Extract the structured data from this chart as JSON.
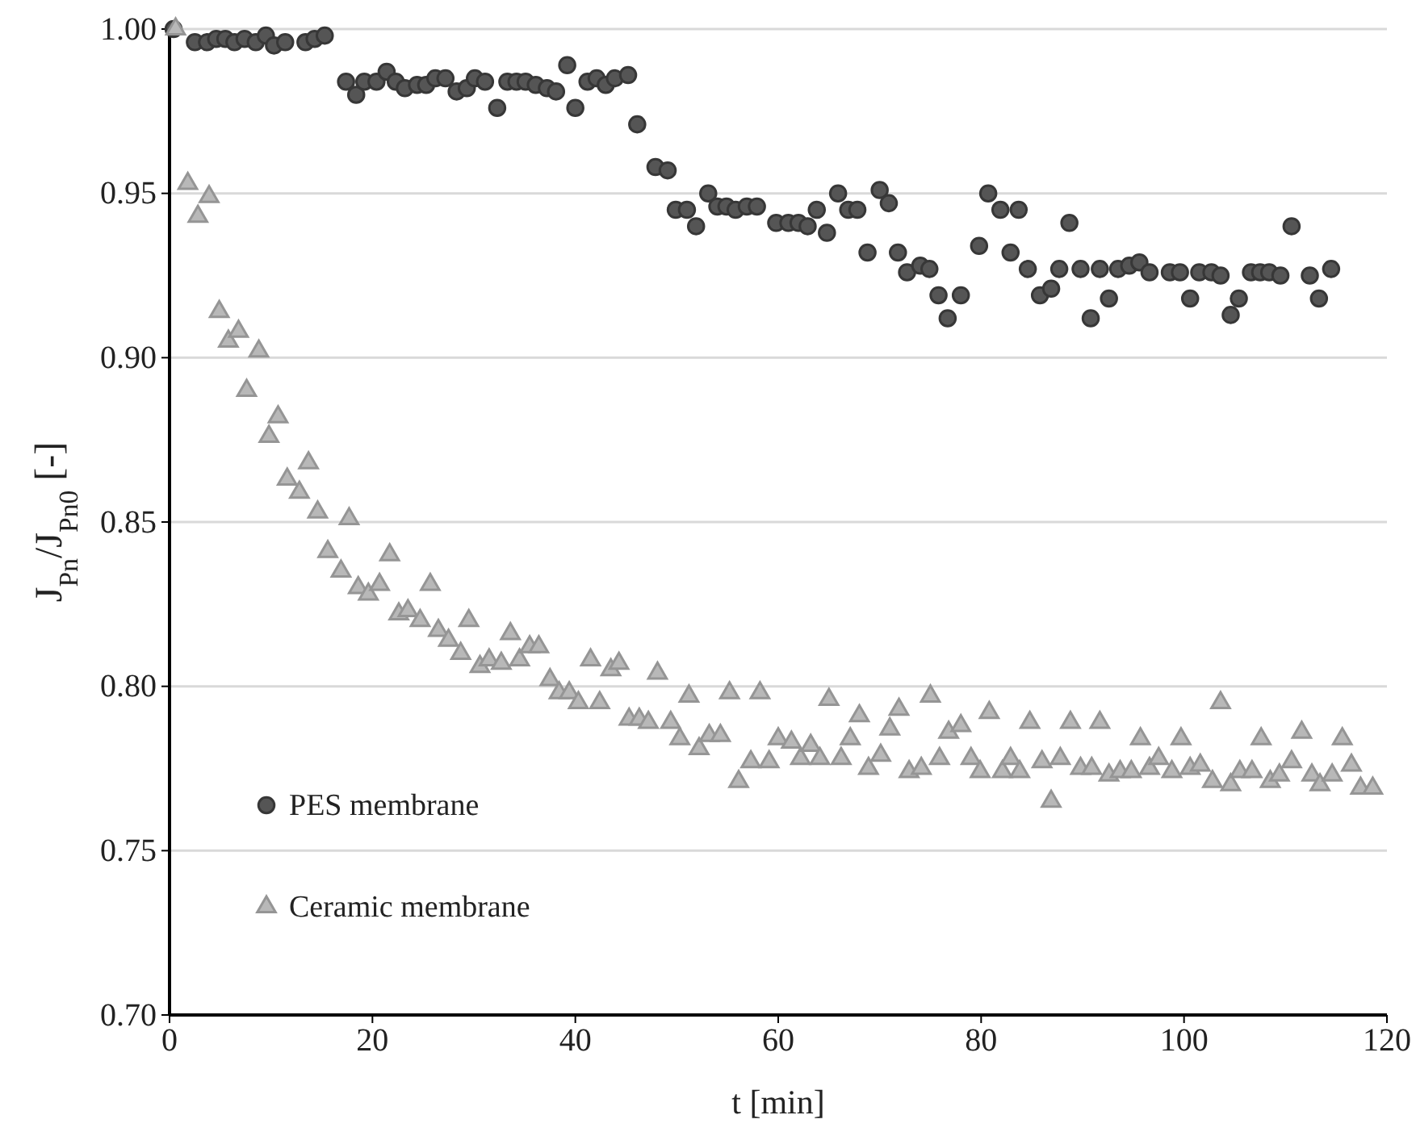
{
  "chart_data": {
    "type": "scatter",
    "xlabel": "t [min]",
    "ylabel": "J$_{Pn}$/J$_{Pn0}$ [-]",
    "xlim": [
      0,
      120
    ],
    "xticks": [
      0,
      20,
      40,
      60,
      80,
      100,
      120
    ],
    "ylim": [
      0.7,
      1.0
    ],
    "yticks": [
      {
        "value": 0.7,
        "label": "0.70"
      },
      {
        "value": 0.75,
        "label": "0.75"
      },
      {
        "value": 0.8,
        "label": "0.80"
      },
      {
        "value": 0.85,
        "label": "0.85"
      },
      {
        "value": 0.9,
        "label": "0.90"
      },
      {
        "value": 0.95,
        "label": "0.95"
      },
      {
        "value": 1.0,
        "label": "1.00"
      }
    ],
    "grid": "y",
    "legend": "bottom left",
    "series": [
      {
        "name": "PES membrane",
        "color": "#555555",
        "marker": "circle",
        "x": [
          0.4,
          2.5,
          3.7,
          4.6,
          5.5,
          6.4,
          7.4,
          8.5,
          9.5,
          10.3,
          11.4,
          13.4,
          14.3,
          15.3,
          17.4,
          18.4,
          19.2,
          20.4,
          21.4,
          22.3,
          23.2,
          24.4,
          25.3,
          26.2,
          27.2,
          28.3,
          29.3,
          30.1,
          31.1,
          32.3,
          33.3,
          34.2,
          35.1,
          36.1,
          37.2,
          38.1,
          39.2,
          40,
          41.2,
          42.1,
          43,
          43.9,
          45.2,
          46.1,
          47.9,
          49.1,
          49.9,
          51,
          51.9,
          53.1,
          54,
          54.9,
          55.8,
          56.9,
          57.9,
          59.8,
          61,
          62,
          62.9,
          63.8,
          64.8,
          65.9,
          66.9,
          67.8,
          68.8,
          70,
          70.9,
          71.8,
          72.7,
          74,
          74.9,
          75.8,
          76.7,
          78,
          79.8,
          80.7,
          81.9,
          82.9,
          83.7,
          84.6,
          85.8,
          86.9,
          87.7,
          88.7,
          89.8,
          90.8,
          91.7,
          92.6,
          93.5,
          94.6,
          95.6,
          96.6,
          98.6,
          99.6,
          100.6,
          101.5,
          102.7,
          103.6,
          104.6,
          105.4,
          106.6,
          107.5,
          108.4,
          109.5,
          110.6,
          112.4,
          113.3,
          114.5
        ],
        "values": [
          1.0,
          0.996,
          0.996,
          0.997,
          0.997,
          0.996,
          0.997,
          0.996,
          0.998,
          0.995,
          0.996,
          0.996,
          0.997,
          0.998,
          0.984,
          0.98,
          0.984,
          0.984,
          0.987,
          0.984,
          0.982,
          0.983,
          0.983,
          0.985,
          0.985,
          0.981,
          0.982,
          0.985,
          0.984,
          0.976,
          0.984,
          0.984,
          0.984,
          0.983,
          0.982,
          0.981,
          0.989,
          0.976,
          0.984,
          0.985,
          0.983,
          0.985,
          0.986,
          0.971,
          0.958,
          0.957,
          0.945,
          0.945,
          0.94,
          0.95,
          0.946,
          0.946,
          0.945,
          0.946,
          0.946,
          0.941,
          0.941,
          0.941,
          0.94,
          0.945,
          0.938,
          0.95,
          0.945,
          0.945,
          0.932,
          0.951,
          0.947,
          0.932,
          0.926,
          0.928,
          0.927,
          0.919,
          0.912,
          0.919,
          0.934,
          0.95,
          0.945,
          0.932,
          0.945,
          0.927,
          0.919,
          0.921,
          0.927,
          0.941,
          0.927,
          0.912,
          0.927,
          0.918,
          0.927,
          0.928,
          0.929,
          0.926,
          0.926,
          0.926,
          0.918,
          0.926,
          0.926,
          0.925,
          0.913,
          0.918,
          0.926,
          0.926,
          0.926,
          0.925,
          0.94,
          0.925,
          0.918,
          0.927
        ]
      },
      {
        "name": "Ceramic membrane",
        "color": "#b8b8b8",
        "marker": "triangle",
        "x": [
          0.6,
          1.8,
          2.8,
          3.9,
          4.9,
          5.8,
          6.8,
          7.6,
          8.8,
          9.8,
          10.7,
          11.6,
          12.8,
          13.7,
          14.6,
          15.6,
          16.9,
          17.7,
          18.6,
          19.6,
          20.7,
          21.7,
          22.6,
          23.5,
          24.7,
          25.7,
          26.5,
          27.5,
          28.7,
          29.5,
          30.6,
          31.5,
          32.7,
          33.6,
          34.5,
          35.5,
          36.4,
          37.5,
          38.4,
          39.4,
          40.3,
          41.5,
          42.4,
          43.5,
          44.3,
          45.3,
          46.3,
          47.2,
          48.1,
          49.4,
          50.3,
          51.2,
          52.2,
          53.2,
          54.3,
          55.2,
          56.1,
          57.3,
          58.2,
          59.1,
          60,
          61.3,
          62.2,
          63.2,
          64.1,
          65,
          66.2,
          67.1,
          68,
          68.9,
          70.1,
          71,
          71.9,
          72.9,
          74.1,
          75,
          75.9,
          76.8,
          78,
          79,
          79.9,
          80.8,
          82.1,
          82.9,
          83.8,
          84.8,
          86,
          86.9,
          87.8,
          88.8,
          89.8,
          90.9,
          91.7,
          92.6,
          93.7,
          94.8,
          95.7,
          96.6,
          97.5,
          98.8,
          99.7,
          100.6,
          101.6,
          102.8,
          103.6,
          104.6,
          105.5,
          106.7,
          107.6,
          108.5,
          109.4,
          110.6,
          111.6,
          112.6,
          113.4,
          114.6,
          115.6,
          116.5,
          117.4,
          118.6
        ],
        "values": [
          1.0,
          0.953,
          0.943,
          0.949,
          0.914,
          0.905,
          0.908,
          0.89,
          0.902,
          0.876,
          0.882,
          0.863,
          0.859,
          0.868,
          0.853,
          0.841,
          0.835,
          0.851,
          0.83,
          0.828,
          0.831,
          0.84,
          0.822,
          0.823,
          0.82,
          0.831,
          0.817,
          0.814,
          0.81,
          0.82,
          0.806,
          0.808,
          0.807,
          0.816,
          0.808,
          0.812,
          0.812,
          0.802,
          0.798,
          0.798,
          0.795,
          0.808,
          0.795,
          0.805,
          0.807,
          0.79,
          0.79,
          0.789,
          0.804,
          0.789,
          0.784,
          0.797,
          0.781,
          0.785,
          0.785,
          0.798,
          0.771,
          0.777,
          0.798,
          0.777,
          0.784,
          0.783,
          0.778,
          0.782,
          0.778,
          0.796,
          0.778,
          0.784,
          0.791,
          0.775,
          0.779,
          0.787,
          0.793,
          0.774,
          0.775,
          0.797,
          0.778,
          0.786,
          0.788,
          0.778,
          0.774,
          0.792,
          0.774,
          0.778,
          0.774,
          0.789,
          0.777,
          0.765,
          0.778,
          0.789,
          0.775,
          0.775,
          0.789,
          0.773,
          0.774,
          0.774,
          0.784,
          0.775,
          0.778,
          0.774,
          0.784,
          0.775,
          0.776,
          0.771,
          0.795,
          0.77,
          0.774,
          0.774,
          0.784,
          0.771,
          0.773,
          0.777,
          0.786,
          0.773,
          0.77,
          0.773,
          0.784,
          0.776,
          0.769,
          0.769
        ]
      }
    ]
  }
}
